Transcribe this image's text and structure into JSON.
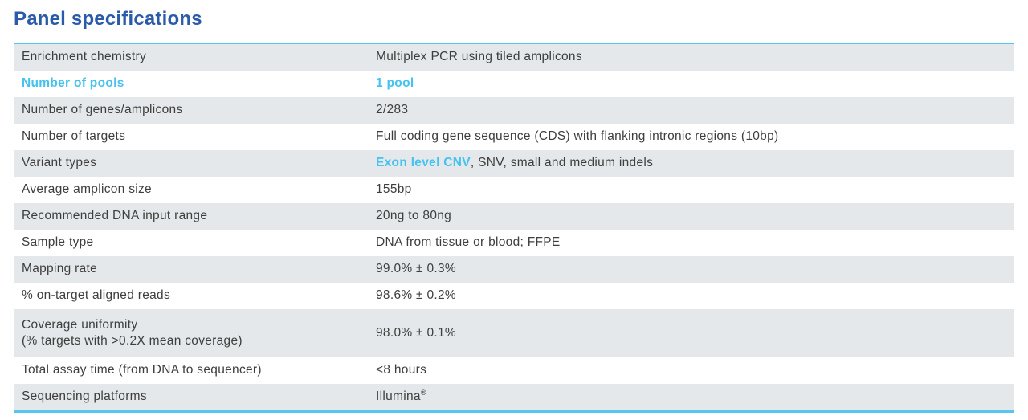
{
  "page": {
    "title": "Panel specifications"
  },
  "colors": {
    "title_blue": "#2b5ba8",
    "accent_cyan": "#45c2f0",
    "border_cyan": "#56c5ef",
    "row_gray": "#e4e8ea",
    "text": "#3e3e3e"
  },
  "table": {
    "rows": [
      {
        "label": "Enrichment chemistry",
        "value": "Multiplex PCR using tiled amplicons"
      },
      {
        "label": "Number of pools",
        "value": "1 pool"
      },
      {
        "label": "Number of genes/amplicons",
        "value": "2/283"
      },
      {
        "label": "Number of targets",
        "value": "Full coding gene sequence (CDS) with flanking intronic regions (10bp)"
      },
      {
        "label": "Variant types",
        "value_accent": "Exon level CNV",
        "value_rest": ", SNV, small and medium indels"
      },
      {
        "label": "Average amplicon size",
        "value": "155bp"
      },
      {
        "label": "Recommended DNA input range",
        "value": "20ng to 80ng"
      },
      {
        "label": "Sample type",
        "value": "DNA from tissue or blood; FFPE"
      },
      {
        "label": "Mapping rate",
        "value": "99.0% ± 0.3%"
      },
      {
        "label": "% on-target aligned reads",
        "value": "98.6% ± 0.2%"
      },
      {
        "label": "Coverage uniformity",
        "label_line2": "(% targets with >0.2X mean coverage)",
        "value": "98.0% ± 0.1%"
      },
      {
        "label": "Total assay time (from DNA to sequencer)",
        "value": "<8 hours"
      },
      {
        "label": "Sequencing platforms",
        "value": "Illumina",
        "value_sup": "®"
      }
    ]
  }
}
